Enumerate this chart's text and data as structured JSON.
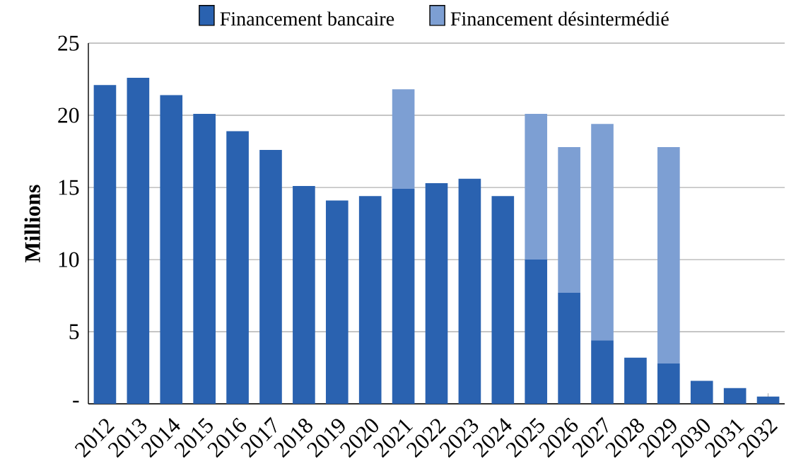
{
  "chart_data": {
    "type": "bar",
    "stacked": true,
    "ylabel": "Millions",
    "categories": [
      "2012",
      "2013",
      "2014",
      "2015",
      "2016",
      "2017",
      "2018",
      "2019",
      "2020",
      "2021",
      "2022",
      "2023",
      "2024",
      "2025",
      "2026",
      "2027",
      "2028",
      "2029",
      "2030",
      "2031",
      "2032"
    ],
    "series": [
      {
        "name": "Financement bancaire",
        "color": "#2a62b0",
        "values": [
          22.1,
          22.6,
          21.4,
          20.1,
          18.9,
          17.6,
          15.1,
          14.1,
          14.4,
          14.9,
          15.3,
          15.6,
          14.4,
          10.0,
          7.7,
          4.4,
          3.2,
          2.8,
          1.6,
          1.1,
          0.5
        ]
      },
      {
        "name": "Financement désintermédié",
        "color": "#7d9fd3",
        "values": [
          null,
          null,
          null,
          null,
          null,
          null,
          null,
          null,
          null,
          6.9,
          null,
          null,
          null,
          10.1,
          10.1,
          15.0,
          null,
          15.0,
          null,
          null,
          null
        ]
      }
    ],
    "ylim": [
      0,
      25
    ],
    "yticks": [
      {
        "value": 0,
        "label": "-"
      },
      5,
      10,
      15,
      20,
      25
    ],
    "grid": "y",
    "legend": "top"
  }
}
